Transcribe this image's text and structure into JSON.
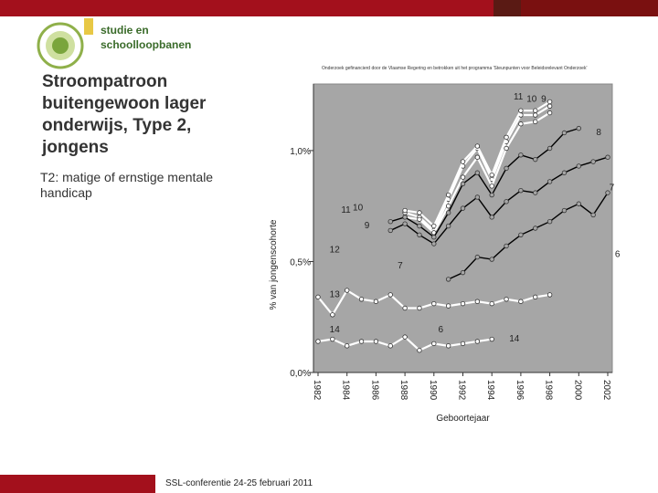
{
  "header": {
    "logo_line1": "studie en",
    "logo_line2": "schoolloopbanen",
    "subtitle": "Onderzoek gefinancierd door de Vlaamse Regering en betrokken uit het programma 'Steunpunten voor Beleidsrelevant Onderzoek'"
  },
  "slide": {
    "title": "Stroompatroon buitengewoon lager onderwijs, Type 2, jongens",
    "subtitle": "T2: matige of ernstige mentale handicap"
  },
  "footer": {
    "text": "SSL-conferentie 24-25 februari 2011"
  },
  "colors": {
    "brand_red": "#a3101c",
    "plot_bg": "#a6a6a6"
  },
  "chart_data": {
    "type": "line",
    "xlabel": "Geboortejaar",
    "ylabel": "% van jongenscohorte",
    "x": [
      1982,
      1983,
      1984,
      1985,
      1986,
      1987,
      1988,
      1989,
      1990,
      1991,
      1992,
      1993,
      1994,
      1995,
      1996,
      1997,
      1998,
      1999,
      2000,
      2001,
      2002
    ],
    "xticks": [
      "1982",
      "1984",
      "1986",
      "1988",
      "1990",
      "1992",
      "1994",
      "1996",
      "1998",
      "2000",
      "2002"
    ],
    "ylim": [
      0,
      1.3
    ],
    "yticks": [
      {
        "value": 0,
        "label": "0,0%"
      },
      {
        "value": 0.5,
        "label": "0,5%"
      },
      {
        "value": 1.0,
        "label": "1,0%"
      }
    ],
    "grid": false,
    "series": [
      {
        "name": "11",
        "color": "#ffffff",
        "values": [
          null,
          null,
          null,
          null,
          null,
          null,
          0.72,
          0.7,
          0.64,
          0.78,
          0.93,
          1.01,
          0.87,
          1.04,
          1.16,
          1.16,
          1.2,
          null,
          null,
          null,
          null
        ]
      },
      {
        "name": "10",
        "color": "#ffffff",
        "values": [
          null,
          null,
          null,
          null,
          null,
          null,
          0.73,
          0.72,
          0.66,
          0.8,
          0.95,
          1.02,
          0.89,
          1.06,
          1.18,
          1.18,
          1.22,
          null,
          null,
          null,
          null
        ]
      },
      {
        "name": "9",
        "color": "#ffffff",
        "values": [
          null,
          null,
          null,
          null,
          null,
          null,
          0.7,
          0.69,
          0.63,
          0.75,
          0.88,
          0.97,
          0.84,
          1.01,
          1.12,
          1.13,
          1.17,
          null,
          null,
          null,
          null
        ]
      },
      {
        "name": "8",
        "color": "#000000",
        "values": [
          null,
          null,
          null,
          null,
          null,
          0.68,
          0.7,
          0.66,
          0.61,
          0.72,
          0.85,
          0.9,
          0.8,
          0.92,
          0.98,
          0.96,
          1.01,
          1.08,
          1.1,
          null,
          null
        ]
      },
      {
        "name": "7",
        "color": "#000000",
        "values": [
          null,
          null,
          null,
          null,
          null,
          0.64,
          0.67,
          0.62,
          0.58,
          0.66,
          0.74,
          0.79,
          0.7,
          0.77,
          0.82,
          0.81,
          0.86,
          0.9,
          0.93,
          0.95,
          0.97
        ]
      },
      {
        "name": "6",
        "color": "#000000",
        "values": [
          null,
          null,
          null,
          null,
          null,
          null,
          null,
          null,
          null,
          0.42,
          0.45,
          0.52,
          0.51,
          0.57,
          0.62,
          0.65,
          0.68,
          0.73,
          0.76,
          0.71,
          0.81
        ]
      },
      {
        "name": "13",
        "color": "#ffffff",
        "values": [
          0.34,
          0.26,
          0.37,
          0.33,
          0.32,
          0.35,
          0.29,
          0.29,
          0.31,
          0.3,
          0.31,
          0.32,
          0.31,
          0.33,
          0.32,
          0.34,
          0.35,
          null,
          null,
          null,
          null
        ]
      },
      {
        "name": "14",
        "color": "#ffffff",
        "values": [
          0.14,
          0.15,
          0.12,
          0.14,
          0.14,
          0.12,
          0.16,
          0.1,
          0.13,
          0.12,
          0.13,
          0.14,
          0.15,
          null,
          null,
          null,
          null,
          null,
          null,
          null,
          null
        ]
      }
    ],
    "series_labels": [
      {
        "text": "11",
        "x": 1995.5,
        "y": 1.23
      },
      {
        "text": "10",
        "x": 1996.4,
        "y": 1.22
      },
      {
        "text": "9",
        "x": 1997.4,
        "y": 1.22
      },
      {
        "text": "8",
        "x": 2001.2,
        "y": 1.07
      },
      {
        "text": "7",
        "x": 2002.1,
        "y": 0.82
      },
      {
        "text": "6",
        "x": 2002.5,
        "y": 0.52
      },
      {
        "text": "11",
        "x": 1983.6,
        "y": 0.72
      },
      {
        "text": "10",
        "x": 1984.4,
        "y": 0.73
      },
      {
        "text": "9",
        "x": 1985.2,
        "y": 0.65
      },
      {
        "text": "12",
        "x": 1982.8,
        "y": 0.54
      },
      {
        "text": "7",
        "x": 1987.5,
        "y": 0.47
      },
      {
        "text": "13",
        "x": 1982.8,
        "y": 0.34
      },
      {
        "text": "14",
        "x": 1982.8,
        "y": 0.18
      },
      {
        "text": "6",
        "x": 1990.3,
        "y": 0.18
      },
      {
        "text": "14",
        "x": 1995.2,
        "y": 0.14
      }
    ]
  }
}
